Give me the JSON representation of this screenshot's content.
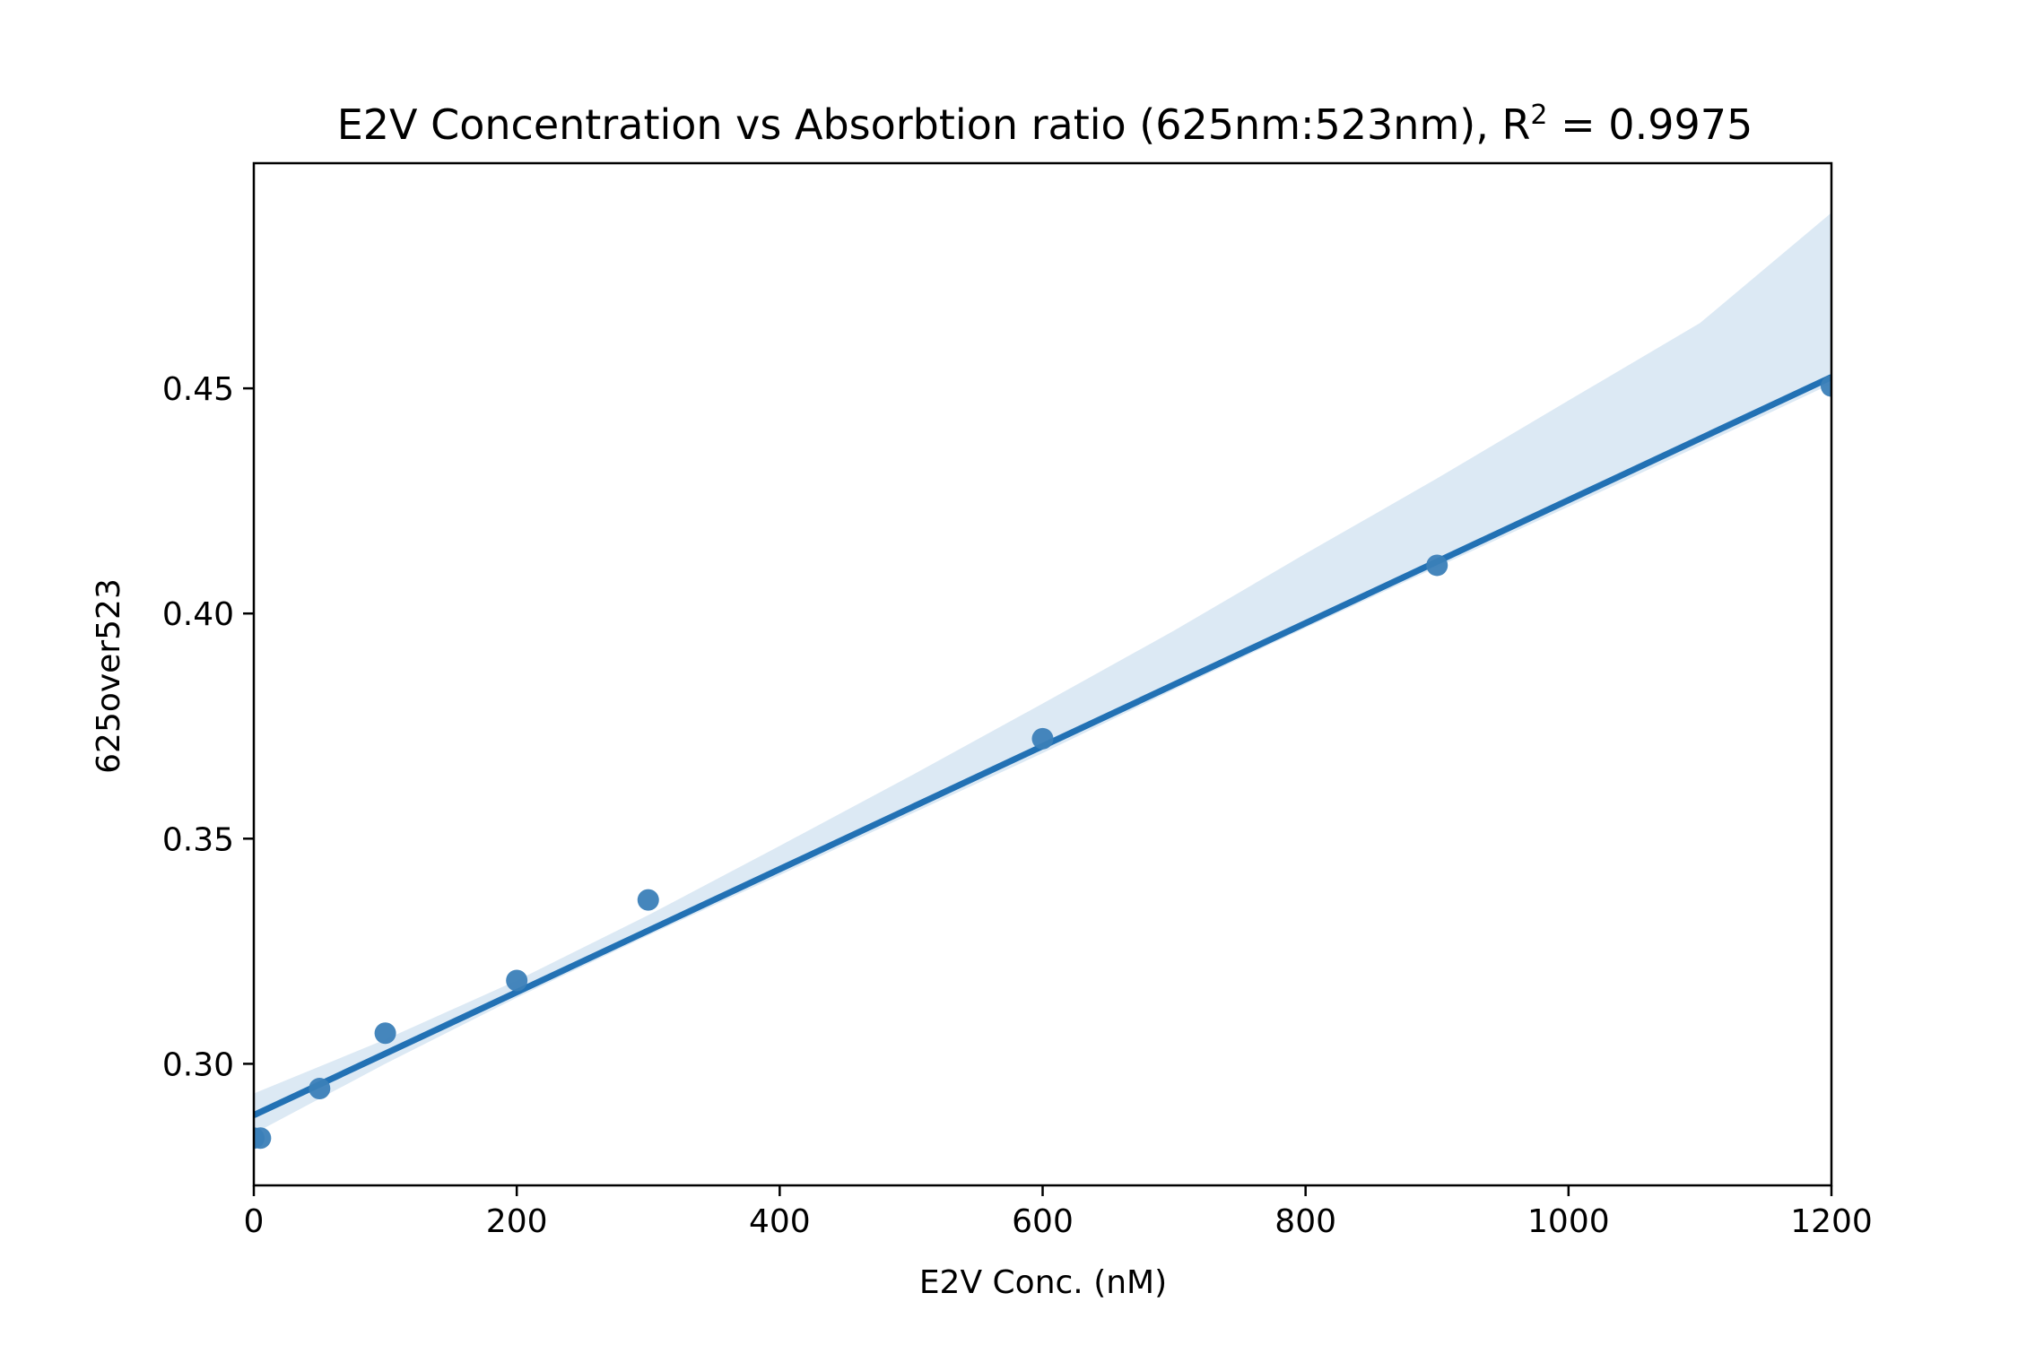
{
  "chart_data": {
    "type": "scatter",
    "title": "E2V Concentration vs Absorbtion ratio (625nm:523nm), R",
    "title_superscript": "2",
    "title_suffix": " = 0.9975",
    "xlabel": "E2V Conc. (nM)",
    "ylabel": "625over523",
    "xlim": [
      0,
      1200
    ],
    "ylim": [
      0.273,
      0.5
    ],
    "xticks": [
      0,
      200,
      400,
      600,
      800,
      1000,
      1200
    ],
    "xtick_labels": [
      "0",
      "200",
      "400",
      "600",
      "800",
      "1000",
      "1200"
    ],
    "yticks": [
      0.3,
      0.35,
      0.4,
      0.45
    ],
    "ytick_labels": [
      "0.30",
      "0.35",
      "0.40",
      "0.45"
    ],
    "grid": false,
    "series": [
      {
        "x": [
          0,
          5,
          50,
          100,
          200,
          300,
          600,
          900,
          1200
        ],
        "y": [
          0.2835,
          0.2835,
          0.2945,
          0.3068,
          0.3185,
          0.3364,
          0.3722,
          0.4107,
          0.4505
        ]
      }
    ],
    "regression": {
      "x": [
        0,
        1200
      ],
      "y": [
        0.2886,
        0.4525
      ]
    },
    "confidence_band": {
      "x": [
        0,
        100,
        200,
        300,
        400,
        500,
        600,
        700,
        800,
        900,
        1000,
        1100,
        1200
      ],
      "upper": [
        0.2934,
        0.3054,
        0.3185,
        0.333,
        0.3484,
        0.364,
        0.38,
        0.3962,
        0.4133,
        0.43,
        0.4473,
        0.4645,
        0.489
      ],
      "lower": [
        0.2845,
        0.3,
        0.3147,
        0.3285,
        0.3419,
        0.3555,
        0.369,
        0.3831,
        0.3968,
        0.4103,
        0.4237,
        0.4373,
        0.451
      ]
    },
    "colors": {
      "point": "#3b7fb8",
      "line": "#2271b4",
      "band": "#dce9f4"
    }
  }
}
